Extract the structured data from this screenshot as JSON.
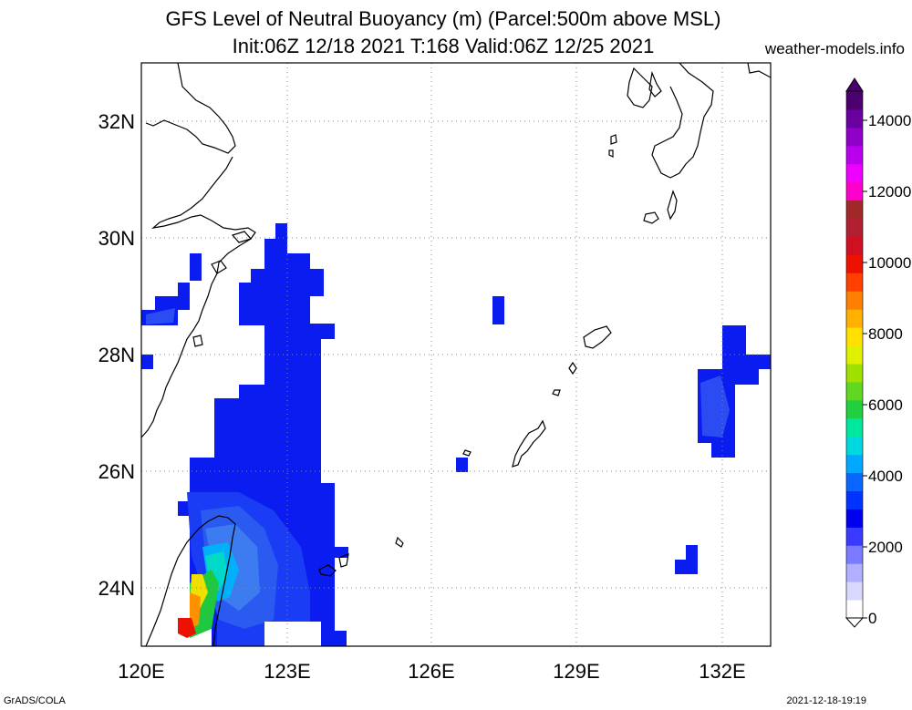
{
  "title_line1": "GFS Level of Neutral Buoyancy (m) (Parcel:500m above MSL)",
  "title_line2": "Init:06Z 12/18 2021 T:168 Valid:06Z 12/25 2021",
  "site": "weather-models.info",
  "footer_left": "GrADS/COLA",
  "footer_right": "2021-12-18-19:19",
  "map": {
    "lon_range": [
      120,
      133
    ],
    "lat_range": [
      23,
      33
    ],
    "lon_ticks": [
      {
        "v": 120,
        "label": "120E"
      },
      {
        "v": 123,
        "label": "123E"
      },
      {
        "v": 126,
        "label": "126E"
      },
      {
        "v": 129,
        "label": "129E"
      },
      {
        "v": 132,
        "label": "132E"
      }
    ],
    "lat_ticks": [
      {
        "v": 24,
        "label": "24N"
      },
      {
        "v": 26,
        "label": "26N"
      },
      {
        "v": 28,
        "label": "28N"
      },
      {
        "v": 30,
        "label": "30N"
      },
      {
        "v": 32,
        "label": "32N"
      }
    ],
    "grid": "dotted"
  },
  "colorbar": {
    "min": 0,
    "max": 15000,
    "labels": [
      "0",
      "2000",
      "4000",
      "6000",
      "8000",
      "10000",
      "12000",
      "14000"
    ],
    "colors": [
      "#ffffff",
      "#d8d8ff",
      "#b0b0ff",
      "#7b7bff",
      "#3a3aff",
      "#0000ee",
      "#0033ff",
      "#0a66ff",
      "#00a8ff",
      "#00d8e0",
      "#00e8a0",
      "#20d040",
      "#60d820",
      "#a0e000",
      "#e0f000",
      "#ffe000",
      "#ffb000",
      "#ff8000",
      "#ff4000",
      "#ee1000",
      "#d01020",
      "#b02030",
      "#a02828",
      "#ff00cc",
      "#ee00ff",
      "#bb00ee",
      "#9000c8",
      "#6a00a0",
      "#4b006e"
    ]
  },
  "field": {
    "description_levels": "m",
    "cells": [
      [
        120.0,
        28.5,
        1800
      ],
      [
        120.25,
        28.5,
        1800
      ],
      [
        120.5,
        28.5,
        1800
      ],
      [
        120.25,
        28.75,
        1800
      ],
      [
        120.5,
        28.75,
        1800
      ],
      [
        120.75,
        28.75,
        1800
      ],
      [
        120.75,
        29.0,
        1800
      ],
      [
        121.0,
        29.25,
        1800
      ],
      [
        121.0,
        29.5,
        1800
      ],
      [
        120.0,
        27.75,
        1800
      ],
      [
        122.5,
        29.0,
        1800
      ],
      [
        122.5,
        29.25,
        1800
      ],
      [
        122.5,
        29.5,
        1800
      ],
      [
        122.5,
        29.75,
        1800
      ],
      [
        122.75,
        29.75,
        1800
      ],
      [
        122.75,
        30.0,
        1800
      ],
      [
        122.75,
        29.5,
        1800
      ],
      [
        122.75,
        29.25,
        1800
      ],
      [
        123.0,
        29.25,
        1800
      ],
      [
        123.25,
        29.25,
        1800
      ],
      [
        123.0,
        29.0,
        1800
      ],
      [
        123.25,
        29.0,
        1800
      ],
      [
        123.5,
        29.0,
        1800
      ],
      [
        123.5,
        28.75,
        1800
      ],
      [
        122.0,
        28.5,
        1800
      ],
      [
        122.25,
        28.5,
        1800
      ],
      [
        122.5,
        28.5,
        1800
      ],
      [
        122.75,
        28.5,
        1800
      ],
      [
        123.0,
        28.5,
        1800
      ],
      [
        123.25,
        28.5,
        1800
      ],
      [
        122.0,
        28.75,
        1800
      ],
      [
        122.25,
        28.75,
        1800
      ],
      [
        122.5,
        28.75,
        1800
      ],
      [
        122.75,
        28.75,
        1800
      ],
      [
        123.0,
        28.75,
        1800
      ],
      [
        123.25,
        28.75,
        1800
      ],
      [
        122.25,
        29.0,
        1800
      ],
      [
        122.75,
        29.0,
        1800
      ],
      [
        122.5,
        28.25,
        1800
      ],
      [
        122.75,
        28.25,
        1800
      ],
      [
        123.0,
        28.25,
        1800
      ],
      [
        123.25,
        28.25,
        1800
      ],
      [
        123.5,
        28.25,
        1800
      ],
      [
        127.25,
        28.5,
        1800
      ],
      [
        127.25,
        28.75,
        1800
      ],
      [
        131.5,
        28.0,
        1800
      ],
      [
        131.75,
        28.0,
        1800
      ],
      [
        131.5,
        28.25,
        1800
      ],
      [
        131.75,
        28.25,
        1800
      ],
      [
        132.0,
        27.75,
        1800
      ],
      [
        132.25,
        27.75,
        1800
      ],
      [
        132.5,
        27.75,
        1800
      ],
      [
        131.5,
        27.75,
        1800
      ],
      [
        131.75,
        27.75,
        1800
      ],
      [
        131.75,
        27.5,
        1800
      ],
      [
        132.0,
        27.5,
        1800
      ],
      [
        131.25,
        27.5,
        1800
      ],
      [
        131.5,
        27.5,
        1800
      ],
      [
        131.25,
        27.25,
        1800
      ],
      [
        131.5,
        27.25,
        1800
      ],
      [
        131.75,
        27.25,
        1800
      ],
      [
        131.25,
        27.0,
        1800
      ],
      [
        131.5,
        27.0,
        1800
      ],
      [
        131.75,
        27.0,
        1800
      ],
      [
        131.25,
        26.75,
        1800
      ],
      [
        131.5,
        26.75,
        1800
      ],
      [
        131.75,
        26.75,
        1800
      ],
      [
        131.5,
        26.5,
        1800
      ],
      [
        131.75,
        26.5,
        1800
      ],
      [
        131.5,
        26.25,
        1800
      ],
      [
        131.75,
        26.25,
        1800
      ],
      [
        126.5,
        26.0,
        1800
      ],
      [
        131.25,
        24.25,
        1800
      ],
      [
        131.5,
        24.25,
        1800
      ],
      [
        131.5,
        24.5,
        1800
      ]
    ]
  }
}
